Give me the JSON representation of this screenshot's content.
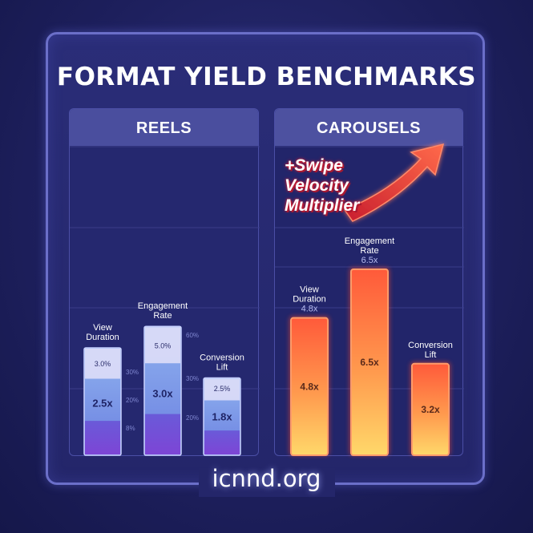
{
  "title": "FORMAT YIELD BENCHMARKS",
  "footer": "icnnd.org",
  "callout": [
    "+Swipe",
    "Velocity",
    "Multiplier"
  ],
  "chart_data": [
    {
      "type": "bar",
      "title": "REELS",
      "categories": [
        "View Duration",
        "Engagement Rate",
        "Conversion Lift"
      ],
      "category_lines": [
        [
          "View",
          "Duration"
        ],
        [
          "Engagement",
          "Rate"
        ],
        [
          "Conversion",
          "Lift"
        ]
      ],
      "values": [
        2.5,
        3.0,
        1.8
      ],
      "value_labels": [
        "2.5x",
        "3.0x",
        "1.8x"
      ],
      "top_labels": [
        "3.0%",
        "5.0%",
        "2.5%"
      ],
      "scale_labels": [
        [
          "30%",
          "20%",
          "8%"
        ],
        [
          "60%",
          "30%",
          "20%"
        ]
      ],
      "ylim": [
        0,
        6.5
      ],
      "colors": {
        "top": "#dcdcf7",
        "mid": "#8fb2ef",
        "bottom": "#7d45d6"
      }
    },
    {
      "type": "bar",
      "title": "CAROUSELS",
      "categories": [
        "View Duration",
        "Engagement Rate",
        "Conversion Lift"
      ],
      "category_lines": [
        [
          "View",
          "Duration"
        ],
        [
          "Engagement",
          "Rate"
        ],
        [
          "Conversion",
          "Lift"
        ]
      ],
      "values": [
        4.8,
        6.5,
        3.2
      ],
      "value_labels": [
        "4.8x",
        "6.5x",
        "3.2x"
      ],
      "sub_labels": [
        "4.8x",
        "6.5x",
        ""
      ],
      "ylim": [
        0,
        6.5
      ],
      "colors": {
        "top": "#ff5a3a",
        "bottom": "#ffd86a",
        "border": "#ff9b6a"
      }
    }
  ]
}
